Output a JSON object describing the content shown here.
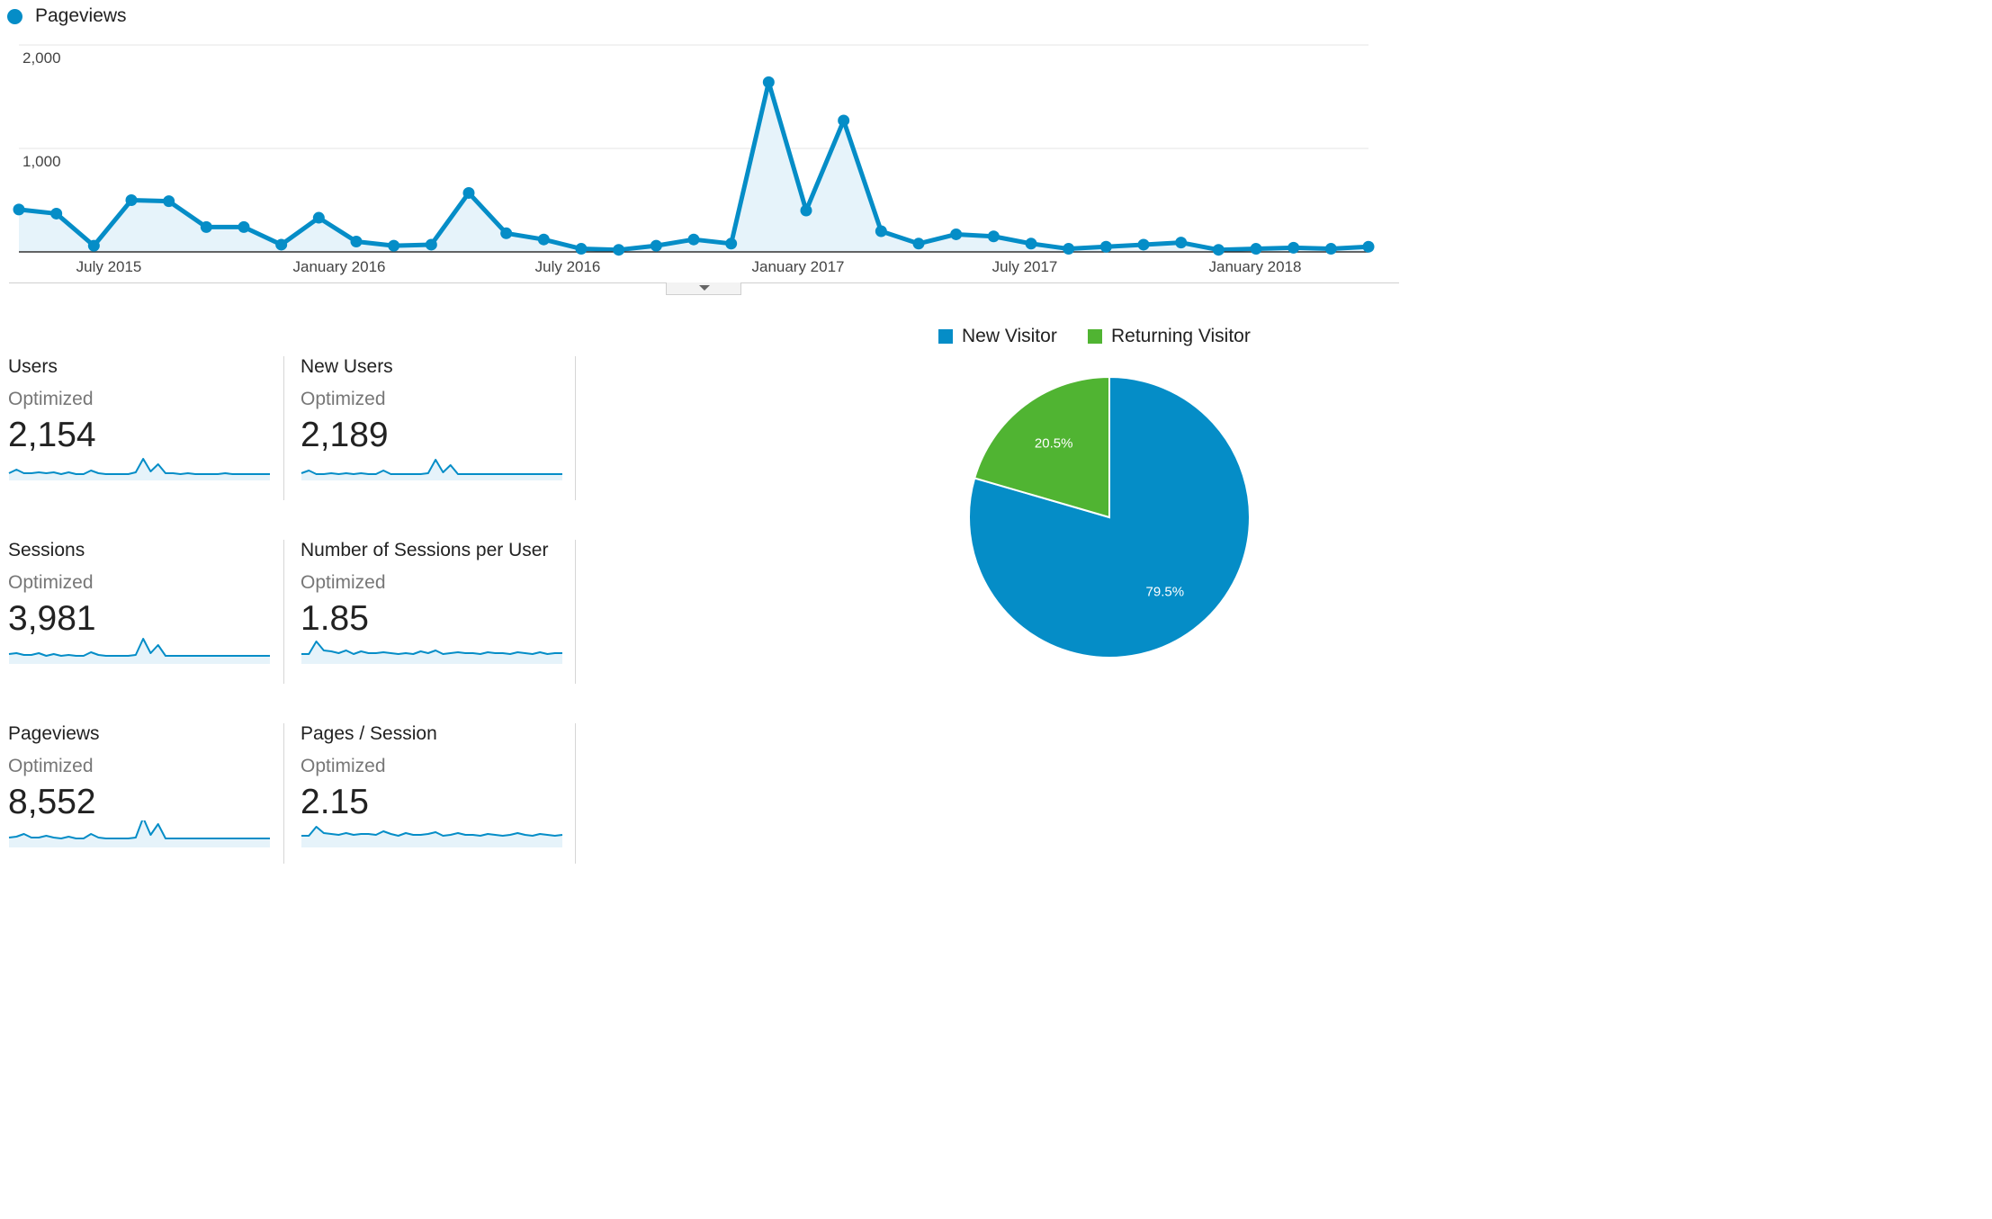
{
  "chart_data": [
    {
      "type": "line",
      "title": "",
      "series": [
        {
          "name": "Pageviews",
          "color": "#058dc7",
          "values": [
            410,
            370,
            60,
            500,
            490,
            240,
            240,
            70,
            330,
            100,
            60,
            70,
            570,
            180,
            120,
            30,
            20,
            60,
            120,
            80,
            1640,
            400,
            1270,
            200,
            80,
            170,
            150,
            80,
            30,
            50,
            70,
            90,
            20,
            30,
            40,
            30,
            50
          ]
        }
      ],
      "ylim": [
        0,
        2000
      ],
      "yticks": [
        "1,000",
        "2,000"
      ],
      "xtick_labels": [
        "July 2015",
        "January 2016",
        "July 2016",
        "January 2017",
        "July 2017",
        "January 2018"
      ],
      "grid": true,
      "legend_position": "top-left"
    },
    {
      "type": "pie",
      "title": "",
      "series": [
        {
          "name": "New Visitor",
          "value": 79.5,
          "label": "79.5%",
          "color": "#058dc7"
        },
        {
          "name": "Returning Visitor",
          "value": 20.5,
          "label": "20.5%",
          "color": "#50b432"
        }
      ],
      "legend_position": "top"
    }
  ],
  "metrics": [
    {
      "name": "Users",
      "note": "Optimized",
      "value": "2,154",
      "spark": [
        30,
        34,
        30,
        30,
        31,
        30,
        31,
        29,
        31,
        29,
        29,
        33,
        30,
        29,
        29,
        29,
        29,
        31,
        46,
        32,
        40,
        30,
        30,
        29,
        30,
        29,
        29,
        29,
        29,
        30,
        29,
        29,
        29,
        29,
        29,
        29
      ]
    },
    {
      "name": "New Users",
      "note": "Optimized",
      "value": "2,189",
      "spark": [
        30,
        33,
        29,
        29,
        30,
        29,
        30,
        29,
        30,
        29,
        29,
        33,
        29,
        29,
        29,
        29,
        29,
        30,
        45,
        31,
        39,
        29,
        29,
        29,
        29,
        29,
        29,
        29,
        29,
        29,
        29,
        29,
        29,
        29,
        29,
        29
      ]
    },
    {
      "name": "Sessions",
      "note": "Optimized",
      "value": "3,981",
      "spark": [
        33,
        34,
        32,
        32,
        34,
        31,
        33,
        31,
        32,
        31,
        31,
        35,
        32,
        31,
        31,
        31,
        31,
        32,
        50,
        34,
        43,
        31,
        31,
        31,
        31,
        31,
        31,
        31,
        31,
        31,
        31,
        31,
        31,
        31,
        31,
        31
      ]
    },
    {
      "name": "Number of Sessions per User",
      "note": "Optimized",
      "value": "1.85",
      "spark": [
        33,
        33,
        47,
        37,
        36,
        34,
        37,
        33,
        36,
        34,
        34,
        35,
        34,
        33,
        34,
        33,
        36,
        34,
        37,
        33,
        34,
        35,
        34,
        34,
        33,
        35,
        34,
        34,
        33,
        35,
        34,
        33,
        35,
        33,
        34,
        34
      ]
    },
    {
      "name": "Pageviews",
      "note": "Optimized",
      "value": "8,552",
      "spark": [
        33,
        34,
        37,
        33,
        33,
        35,
        33,
        32,
        34,
        32,
        32,
        37,
        33,
        32,
        32,
        32,
        32,
        33,
        55,
        36,
        48,
        32,
        32,
        32,
        32,
        32,
        32,
        32,
        32,
        32,
        32,
        32,
        32,
        32,
        32,
        32
      ]
    },
    {
      "name": "Pages / Session",
      "note": "Optimized",
      "value": "2.15",
      "spark": [
        35,
        35,
        45,
        38,
        37,
        36,
        38,
        36,
        37,
        37,
        36,
        40,
        37,
        35,
        38,
        36,
        36,
        37,
        39,
        35,
        36,
        38,
        36,
        36,
        35,
        37,
        36,
        35,
        36,
        38,
        36,
        35,
        37,
        36,
        35,
        36
      ]
    }
  ]
}
